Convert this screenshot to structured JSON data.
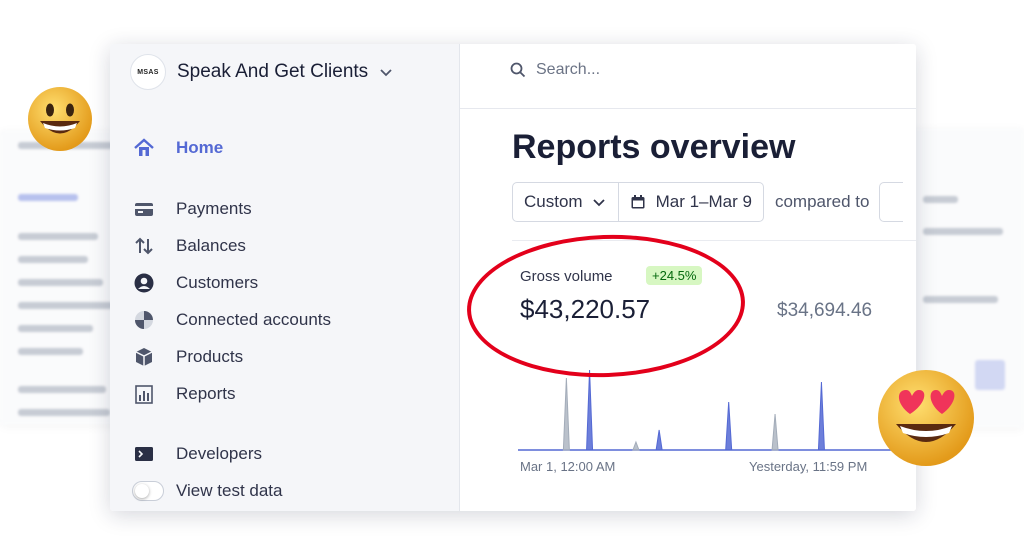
{
  "brand": {
    "logo_text": "MSAS",
    "name": "Speak And Get Clients"
  },
  "sidebar": {
    "items": [
      {
        "label": "Home",
        "icon": "home-icon",
        "active": true
      },
      {
        "label": "Payments",
        "icon": "payments-icon"
      },
      {
        "label": "Balances",
        "icon": "balances-icon"
      },
      {
        "label": "Customers",
        "icon": "customers-icon"
      },
      {
        "label": "Connected accounts",
        "icon": "connected-accounts-icon"
      },
      {
        "label": "Products",
        "icon": "products-icon"
      },
      {
        "label": "Reports",
        "icon": "reports-icon"
      },
      {
        "label": "Developers",
        "icon": "developers-icon"
      },
      {
        "label": "View test data",
        "icon": "toggle-icon"
      }
    ]
  },
  "search": {
    "placeholder": "Search..."
  },
  "main": {
    "title": "Reports overview",
    "filters": {
      "range_type": "Custom",
      "date_range": "Mar 1–Mar 9",
      "compared_label": "compared to"
    },
    "metric": {
      "label": "Gross volume",
      "change": "+24.5%",
      "value": "$43,220.57",
      "compare_value": "$34,694.46"
    },
    "chart": {
      "start_label": "Mar 1, 12:00 AM",
      "end_label": "Yesterday, 11:59 PM"
    }
  },
  "colors": {
    "accent": "#5469d4",
    "highlight_oval": "#e3001b",
    "badge_bg": "#d7f7c2",
    "badge_text": "#05690d"
  },
  "decorations": {
    "left_emoji": "grinning-face",
    "right_emoji": "heart-eyes-face"
  },
  "chart_data": {
    "type": "line",
    "x": [
      0,
      2,
      3,
      4,
      5,
      6,
      7,
      8,
      9,
      10,
      11,
      12,
      13,
      14,
      15,
      16
    ],
    "series": [
      {
        "values": [
          0,
          0,
          100,
          0,
          0,
          25,
          0,
          0,
          60,
          0,
          0,
          0,
          85,
          0,
          0,
          0
        ]
      },
      {
        "values": [
          0,
          90,
          0,
          0,
          10,
          0,
          0,
          0,
          0,
          0,
          45,
          0,
          0,
          0,
          0,
          0
        ]
      }
    ]
  }
}
